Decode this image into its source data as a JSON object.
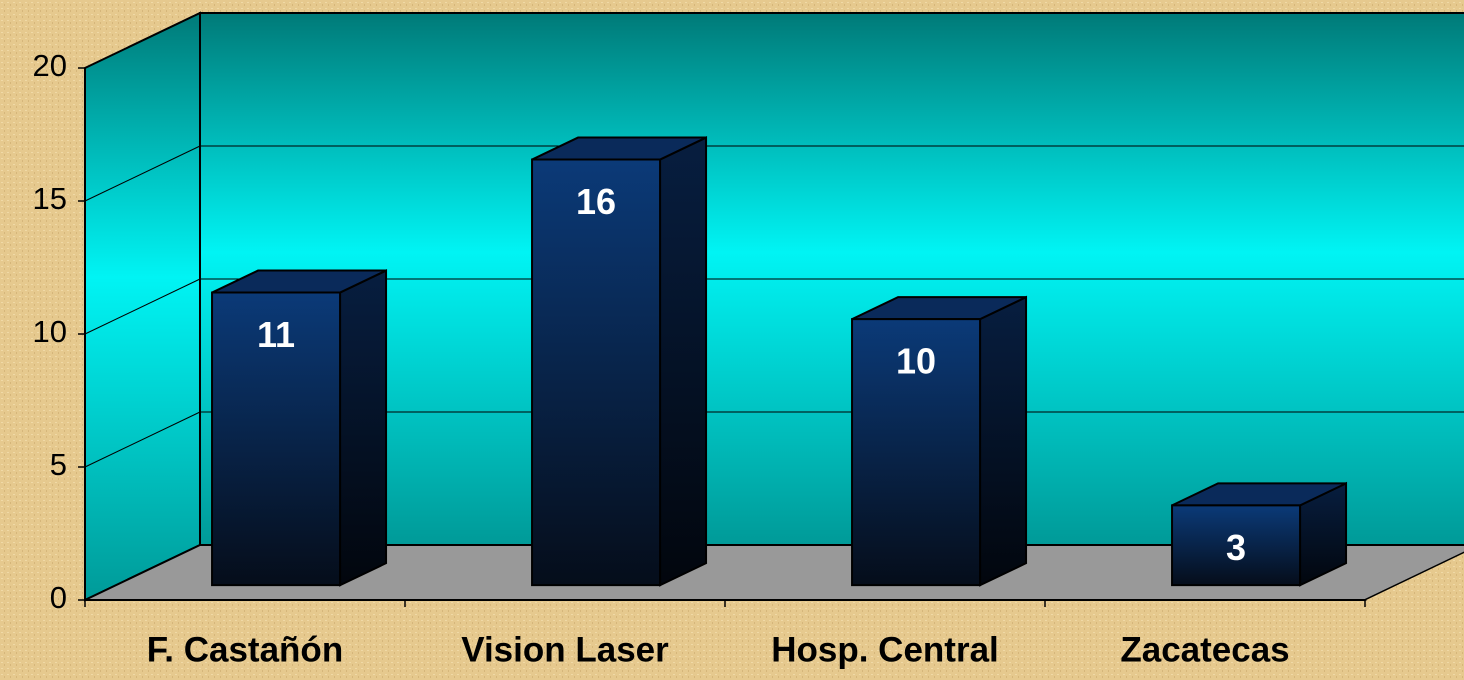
{
  "chart_data": {
    "type": "bar3d",
    "categories": [
      "F. Castañón",
      "Vision Laser",
      "Hosp. Central",
      "Zacatecas"
    ],
    "values": [
      11,
      16,
      10,
      3
    ],
    "color": "#0a2a5a",
    "ylim": [
      0,
      20
    ],
    "yticks": [
      0,
      5,
      10,
      15,
      20
    ],
    "grid": true
  }
}
